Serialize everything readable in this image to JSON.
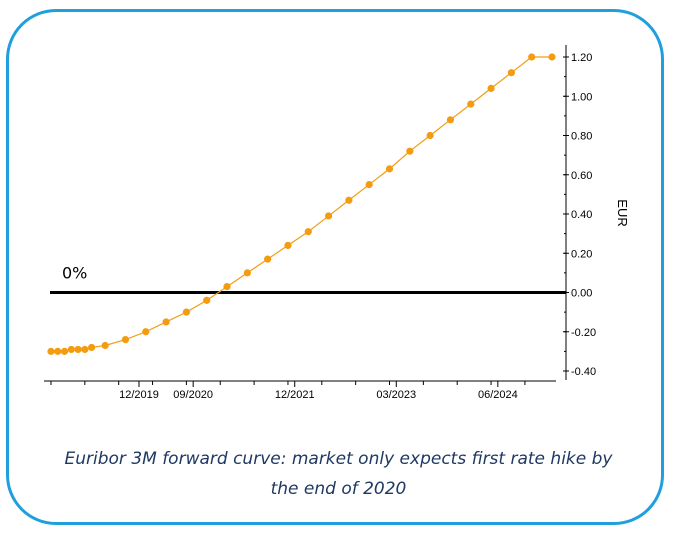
{
  "chart_data": {
    "type": "line",
    "title": "Euribor 3M forward curve: market only expects first rate hike by the end of 2020",
    "ylabel": "EUR",
    "xlabel": "",
    "ylim": [
      -0.4,
      1.2
    ],
    "yticks": [
      1.2,
      1.0,
      0.8,
      0.6,
      0.4,
      0.2,
      0.0,
      -0.2,
      -0.4
    ],
    "ytick_labels": [
      "1.20",
      "1.00",
      "0.80",
      "0.60",
      "0.40",
      "0.20",
      "0.00",
      "-0.20",
      "-0.40"
    ],
    "x_tick_labels": [
      "12/2019",
      "09/2020",
      "12/2021",
      "03/2023",
      "06/2024"
    ],
    "x_tick_positions": [
      6.5,
      10.5,
      18,
      25.5,
      33
    ],
    "reference_line": {
      "y": 0.0,
      "label": "0%"
    },
    "series": [
      {
        "name": "Euribor 3M forward",
        "color": "#f39c12",
        "x": [
          0,
          0.5,
          1,
          1.5,
          2,
          2.5,
          3,
          4,
          5.5,
          7,
          8.5,
          10,
          11.5,
          13,
          14.5,
          16,
          17.5,
          19,
          20.5,
          22,
          23.5,
          25,
          26.5,
          28,
          29.5,
          31,
          32.5,
          34,
          35.5,
          37
        ],
        "values": [
          -0.3,
          -0.3,
          -0.3,
          -0.29,
          -0.29,
          -0.29,
          -0.28,
          -0.27,
          -0.24,
          -0.2,
          -0.15,
          -0.1,
          -0.04,
          0.03,
          0.1,
          0.17,
          0.24,
          0.31,
          0.39,
          0.47,
          0.55,
          0.63,
          0.72,
          0.8,
          0.88,
          0.96,
          1.04,
          1.12,
          1.2,
          1.2
        ]
      }
    ]
  },
  "caption": {
    "line1": "Euribor 3M forward curve: market only expects first rate hike by",
    "line2": "the end of 2020"
  }
}
